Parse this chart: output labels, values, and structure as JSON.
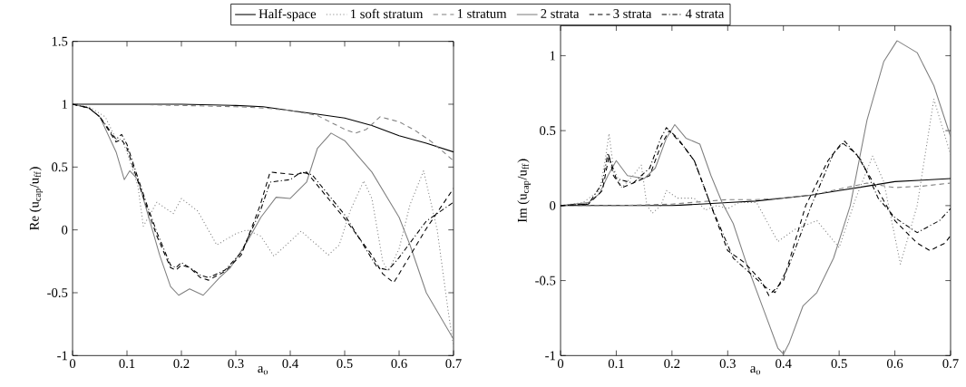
{
  "chart_data": [
    {
      "type": "line",
      "xlabel": "a$_{o}$",
      "ylabel": "Re (u$_{cap}$/u$_{ff}$)",
      "xlim": [
        0,
        0.7
      ],
      "ylim": [
        -1,
        1.5
      ],
      "xticks": [
        0,
        0.1,
        0.2,
        0.3,
        0.4,
        0.5,
        0.6,
        0.7
      ],
      "yticks": [
        -1,
        -0.5,
        0,
        0.5,
        1,
        1.5
      ],
      "legend": "top",
      "grid": false,
      "marker": "none",
      "series": [
        {
          "name": "Half-space",
          "color": "#000000",
          "line_style": "solid",
          "x": [
            0,
            0.1,
            0.2,
            0.3,
            0.35,
            0.4,
            0.45,
            0.5,
            0.55,
            0.6,
            0.65,
            0.7
          ],
          "values": [
            1,
            1,
            1,
            0.99,
            0.98,
            0.95,
            0.92,
            0.89,
            0.83,
            0.75,
            0.69,
            0.62
          ]
        },
        {
          "name": "1 soft stratum",
          "color": "#808080",
          "line_style": "dotted",
          "x": [
            0,
            0.03,
            0.06,
            0.08,
            0.09,
            0.1,
            0.12,
            0.13,
            0.155,
            0.185,
            0.2,
            0.23,
            0.265,
            0.3,
            0.32,
            0.346,
            0.37,
            0.4,
            0.42,
            0.47,
            0.49,
            0.51,
            0.535,
            0.55,
            0.57,
            0.58,
            0.6,
            0.62,
            0.645,
            0.67,
            0.69,
            0.7
          ],
          "values": [
            1,
            0.98,
            0.9,
            0.72,
            0.72,
            0.62,
            0.35,
            0.03,
            0.22,
            0.13,
            0.25,
            0.15,
            -0.12,
            -0.03,
            0,
            -0.05,
            -0.21,
            -0.09,
            -0.01,
            -0.2,
            -0.12,
            0.15,
            0.39,
            0.25,
            -0.25,
            -0.33,
            -0.15,
            0.2,
            0.47,
            0,
            -0.64,
            -0.93
          ]
        },
        {
          "name": "1 stratum",
          "color": "#808080",
          "line_style": "dashed",
          "x": [
            0,
            0.1,
            0.2,
            0.3,
            0.35,
            0.4,
            0.45,
            0.5,
            0.52,
            0.54,
            0.565,
            0.6,
            0.63,
            0.66,
            0.7
          ],
          "values": [
            1,
            1,
            0.99,
            0.98,
            0.97,
            0.95,
            0.91,
            0.8,
            0.77,
            0.8,
            0.9,
            0.86,
            0.79,
            0.7,
            0.55
          ]
        },
        {
          "name": "2 strata",
          "color": "#808080",
          "line_style": "solid",
          "x": [
            0,
            0.03,
            0.05,
            0.08,
            0.095,
            0.105,
            0.12,
            0.14,
            0.16,
            0.18,
            0.195,
            0.215,
            0.24,
            0.27,
            0.29,
            0.32,
            0.346,
            0.374,
            0.4,
            0.43,
            0.45,
            0.475,
            0.5,
            0.55,
            0.6,
            0.62,
            0.65,
            0.7
          ],
          "values": [
            1,
            0.97,
            0.9,
            0.62,
            0.4,
            0.47,
            0.4,
            0.1,
            -0.2,
            -0.45,
            -0.52,
            -0.47,
            -0.52,
            -0.38,
            -0.3,
            -0.1,
            0.1,
            0.26,
            0.25,
            0.38,
            0.65,
            0.77,
            0.71,
            0.46,
            0.1,
            -0.12,
            -0.5,
            -0.87
          ]
        },
        {
          "name": "3 strata",
          "color": "#000000",
          "line_style": "dashed",
          "x": [
            0,
            0.03,
            0.05,
            0.08,
            0.09,
            0.1,
            0.115,
            0.135,
            0.155,
            0.18,
            0.19,
            0.2,
            0.215,
            0.235,
            0.25,
            0.28,
            0.31,
            0.345,
            0.363,
            0.385,
            0.41,
            0.43,
            0.5,
            0.55,
            0.57,
            0.59,
            0.6,
            0.65,
            0.7
          ],
          "values": [
            1,
            0.97,
            0.9,
            0.7,
            0.72,
            0.65,
            0.45,
            0.2,
            -0.05,
            -0.3,
            -0.32,
            -0.28,
            -0.3,
            -0.38,
            -0.4,
            -0.33,
            -0.2,
            0.2,
            0.46,
            0.45,
            0.44,
            0.46,
            0.09,
            -0.2,
            -0.35,
            -0.42,
            -0.35,
            0.01,
            0.33
          ]
        },
        {
          "name": "4 strata",
          "color": "#000000",
          "line_style": "dashdot",
          "x": [
            0,
            0.03,
            0.05,
            0.08,
            0.09,
            0.1,
            0.115,
            0.135,
            0.155,
            0.18,
            0.19,
            0.2,
            0.215,
            0.235,
            0.25,
            0.28,
            0.31,
            0.345,
            0.363,
            0.4,
            0.42,
            0.44,
            0.5,
            0.56,
            0.58,
            0.6,
            0.65,
            0.7
          ],
          "values": [
            1,
            0.97,
            0.9,
            0.72,
            0.76,
            0.68,
            0.48,
            0.22,
            -0.02,
            -0.28,
            -0.3,
            -0.26,
            -0.3,
            -0.36,
            -0.38,
            -0.32,
            -0.18,
            0.15,
            0.38,
            0.4,
            0.46,
            0.44,
            0.12,
            -0.3,
            -0.32,
            -0.22,
            0.07,
            0.22
          ]
        }
      ]
    },
    {
      "type": "line",
      "xlabel": "a$_{o}$",
      "ylabel": "Im (u$_{cap}$/u$_{ff}$)",
      "xlim": [
        0,
        0.7
      ],
      "ylim": [
        -1,
        1.2
      ],
      "xticks": [
        0,
        0.1,
        0.2,
        0.3,
        0.4,
        0.5,
        0.6,
        0.7
      ],
      "yticks": [
        -1,
        -0.5,
        0,
        0.5,
        1
      ],
      "grid": false,
      "marker": "none",
      "series": [
        {
          "color": "#000000",
          "line_style": "solid",
          "x": [
            0,
            0.1,
            0.2,
            0.25,
            0.3,
            0.35,
            0.4,
            0.45,
            0.5,
            0.55,
            0.6,
            0.65,
            0.7
          ],
          "values": [
            0,
            0,
            0,
            0.01,
            0.02,
            0.03,
            0.05,
            0.07,
            0.1,
            0.13,
            0.16,
            0.17,
            0.18
          ]
        },
        {
          "color": "#808080",
          "line_style": "dotted",
          "x": [
            0,
            0.04,
            0.07,
            0.08,
            0.087,
            0.095,
            0.11,
            0.13,
            0.145,
            0.155,
            0.165,
            0.18,
            0.19,
            0.21,
            0.24,
            0.26,
            0.28,
            0.3,
            0.32,
            0.352,
            0.39,
            0.42,
            0.46,
            0.5,
            0.53,
            0.56,
            0.58,
            0.61,
            0.64,
            0.67,
            0.7
          ],
          "values": [
            0,
            0.02,
            0.1,
            0.3,
            0.48,
            0.25,
            0.12,
            0.2,
            0.27,
            0,
            -0.05,
            0,
            0.1,
            0.05,
            0.05,
            -0.03,
            0,
            -0.02,
            0.02,
            0.02,
            -0.24,
            -0.16,
            -0.1,
            -0.28,
            0.05,
            0.33,
            0.16,
            -0.39,
            0,
            0.71,
            0.34
          ]
        },
        {
          "color": "#808080",
          "line_style": "dashed",
          "x": [
            0,
            0.1,
            0.2,
            0.3,
            0.35,
            0.4,
            0.45,
            0.5,
            0.55,
            0.6,
            0.65,
            0.7
          ],
          "values": [
            0,
            0,
            0.01,
            0.04,
            0.04,
            0.05,
            0.07,
            0.11,
            0.15,
            0.12,
            0.13,
            0.15
          ]
        },
        {
          "color": "#808080",
          "line_style": "solid",
          "x": [
            0,
            0.05,
            0.07,
            0.085,
            0.1,
            0.12,
            0.15,
            0.17,
            0.19,
            0.205,
            0.225,
            0.25,
            0.27,
            0.29,
            0.31,
            0.335,
            0.365,
            0.39,
            0.4,
            0.41,
            0.435,
            0.46,
            0.49,
            0.52,
            0.55,
            0.58,
            0.604,
            0.64,
            0.67,
            0.7
          ],
          "values": [
            0,
            0.02,
            0.08,
            0.2,
            0.3,
            0.2,
            0.18,
            0.25,
            0.45,
            0.54,
            0.45,
            0.41,
            0.2,
            0.02,
            -0.12,
            -0.4,
            -0.7,
            -0.95,
            -0.99,
            -0.92,
            -0.67,
            -0.58,
            -0.35,
            0,
            0.57,
            0.96,
            1.1,
            1.02,
            0.8,
            0.46
          ]
        },
        {
          "color": "#000000",
          "line_style": "dashed",
          "x": [
            0,
            0.05,
            0.075,
            0.087,
            0.095,
            0.11,
            0.13,
            0.16,
            0.18,
            0.195,
            0.22,
            0.24,
            0.27,
            0.3,
            0.33,
            0.36,
            0.374,
            0.4,
            0.44,
            0.48,
            0.505,
            0.53,
            0.57,
            0.6,
            0.64,
            0.663,
            0.69,
            0.7
          ],
          "values": [
            0,
            0.01,
            0.1,
            0.33,
            0.2,
            0.12,
            0.15,
            0.2,
            0.4,
            0.5,
            0.4,
            0.3,
            0,
            -0.3,
            -0.38,
            -0.5,
            -0.6,
            -0.5,
            0,
            0.3,
            0.42,
            0.35,
            0.1,
            -0.1,
            -0.25,
            -0.3,
            -0.25,
            -0.2
          ]
        },
        {
          "color": "#000000",
          "line_style": "dashdot",
          "x": [
            0,
            0.05,
            0.075,
            0.085,
            0.1,
            0.13,
            0.16,
            0.18,
            0.19,
            0.21,
            0.24,
            0.27,
            0.31,
            0.37,
            0.385,
            0.41,
            0.45,
            0.49,
            0.51,
            0.54,
            0.57,
            0.6,
            0.64,
            0.68,
            0.7
          ],
          "values": [
            0,
            0.01,
            0.15,
            0.35,
            0.18,
            0.15,
            0.25,
            0.45,
            0.52,
            0.45,
            0.3,
            0,
            -0.35,
            -0.55,
            -0.58,
            -0.4,
            0,
            0.35,
            0.43,
            0.3,
            0.05,
            -0.08,
            -0.18,
            -0.1,
            -0.02
          ]
        }
      ]
    }
  ]
}
